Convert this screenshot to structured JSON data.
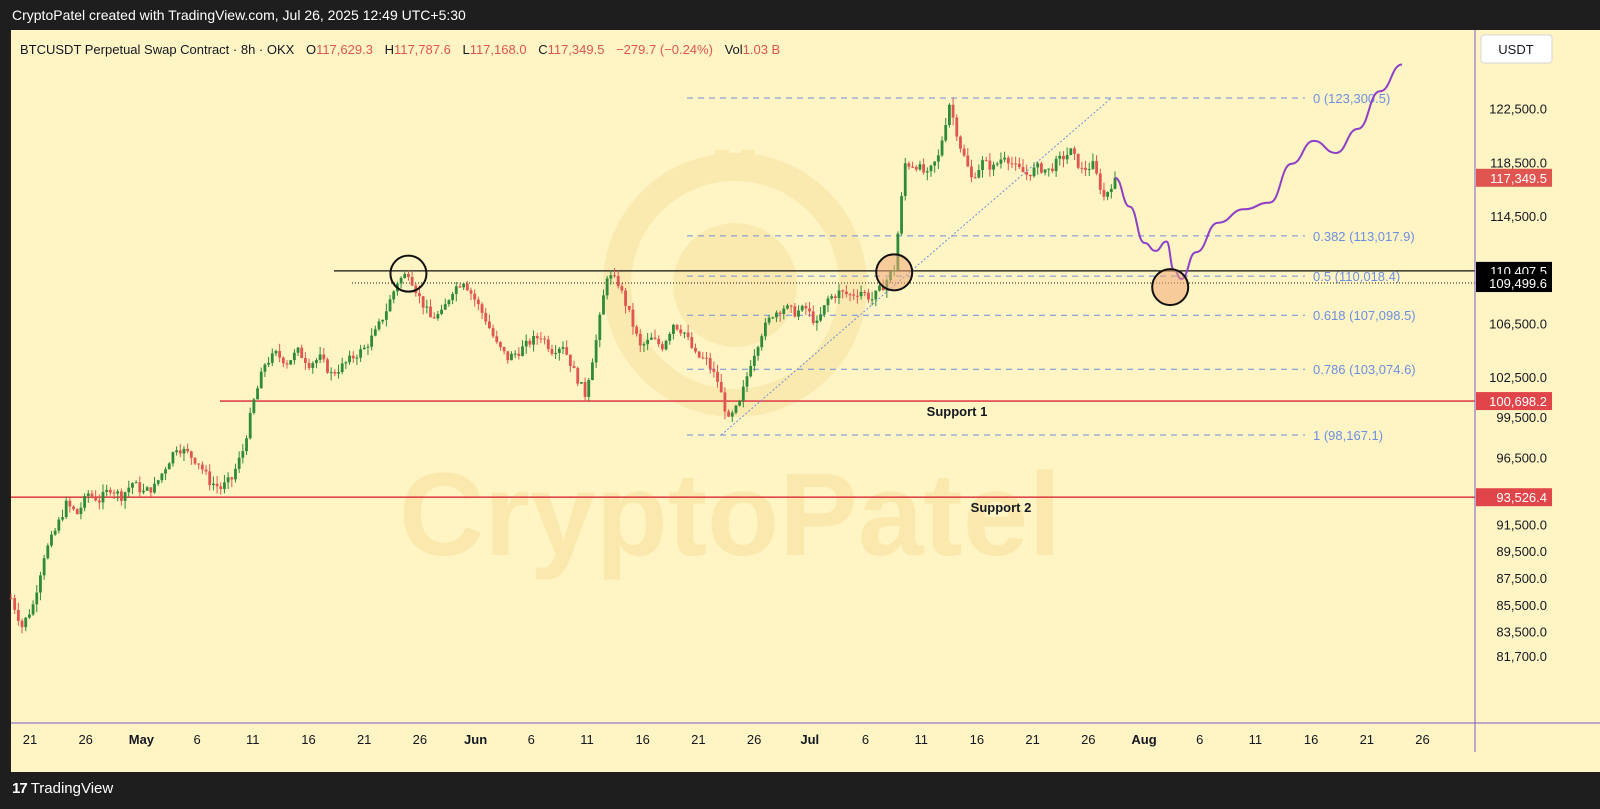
{
  "header": {
    "credit": "CryptoPatel created with TradingView.com, Jul 26, 2025 12:49 UTC+5:30"
  },
  "legend": {
    "symbol": "BTCUSDT Perpetual Swap Contract · 8h · OKX",
    "open_label": "O",
    "open": "117,629.3",
    "high_label": "H",
    "high": "117,787.6",
    "low_label": "L",
    "low": "117,168.0",
    "close_label": "C",
    "close": "117,349.5",
    "change": "−279.7 (−0.24%)",
    "vol_label": "Vol",
    "vol": "1.03 B"
  },
  "watermark": "CryptoPatel",
  "currency": "USDT",
  "footer": {
    "brand": "TradingView"
  },
  "colors": {
    "up": "#2e8b3a",
    "down": "#e0554f",
    "background": "#fff5c4",
    "fib": "#6c8fe0",
    "support": "#e0454a",
    "projection": "#8e3fc7"
  },
  "chart_data": {
    "type": "candlestick",
    "interval": "8h",
    "x_ticks": [
      "21",
      "26",
      "May",
      "6",
      "11",
      "16",
      "21",
      "26",
      "Jun",
      "6",
      "11",
      "16",
      "21",
      "26",
      "Jul",
      "6",
      "11",
      "16",
      "21",
      "26",
      "Aug",
      "6",
      "11",
      "16",
      "21",
      "26"
    ],
    "y_ticks": [
      "122,500.0",
      "118,500.0",
      "114,500.0",
      "106,500.0",
      "102,500.0",
      "99,500.0",
      "96,500.0",
      "91,500.0",
      "89,500.0",
      "87,500.0",
      "85,500.0",
      "83,500.0",
      "81,700.0"
    ],
    "y_range": [
      80400,
      126500
    ],
    "price_labels": [
      {
        "text": "117,349.5",
        "value": 117349.5,
        "color": "#e0554f"
      },
      {
        "text": "110,407.5",
        "value": 110407.5,
        "color": "#000000"
      },
      {
        "text": "109,499.6",
        "value": 109499.6,
        "color": "#000000"
      },
      {
        "text": "100,698.2",
        "value": 100698.2,
        "color": "#e0454a"
      },
      {
        "text": "93,526.4",
        "value": 93526.4,
        "color": "#e0454a"
      }
    ],
    "fib_levels": [
      {
        "label": "0 (123,300.5)",
        "value": 123300.5
      },
      {
        "label": "0.382 (113,017.9)",
        "value": 113017.9
      },
      {
        "label": "0.5 (110,018.4)",
        "value": 110018.4
      },
      {
        "label": "0.618 (107,098.5)",
        "value": 107098.5
      },
      {
        "label": "0.786 (103,074.6)",
        "value": 103074.6
      },
      {
        "label": "1 (98,167.1)",
        "value": 98167.1
      }
    ],
    "supports": [
      {
        "label": "Support 1",
        "value": 100698.2
      },
      {
        "label": "Support 2",
        "value": 93526.4
      }
    ],
    "resistance_line": 110407.5,
    "dotted_line": 109499.6,
    "price_path": [
      [
        0,
        86000
      ],
      [
        3,
        83900
      ],
      [
        6,
        85500
      ],
      [
        9,
        89200
      ],
      [
        12,
        91000
      ],
      [
        15,
        93000
      ],
      [
        18,
        92300
      ],
      [
        21,
        93800
      ],
      [
        24,
        93300
      ],
      [
        27,
        94200
      ],
      [
        30,
        93600
      ],
      [
        33,
        94600
      ],
      [
        36,
        93900
      ],
      [
        39,
        94300
      ],
      [
        42,
        95800
      ],
      [
        45,
        97300
      ],
      [
        48,
        96800
      ],
      [
        51,
        96100
      ],
      [
        54,
        94700
      ],
      [
        57,
        94200
      ],
      [
        60,
        94900
      ],
      [
        63,
        97000
      ],
      [
        66,
        100700
      ],
      [
        69,
        103500
      ],
      [
        72,
        104200
      ],
      [
        75,
        103600
      ],
      [
        78,
        104400
      ],
      [
        81,
        103500
      ],
      [
        84,
        103900
      ],
      [
        87,
        102700
      ],
      [
        90,
        103300
      ],
      [
        93,
        104000
      ],
      [
        96,
        104600
      ],
      [
        99,
        105800
      ],
      [
        102,
        107500
      ],
      [
        105,
        109600
      ],
      [
        108,
        110300
      ],
      [
        111,
        108400
      ],
      [
        114,
        106900
      ],
      [
        117,
        107200
      ],
      [
        120,
        109000
      ],
      [
        123,
        109700
      ],
      [
        126,
        108300
      ],
      [
        129,
        106800
      ],
      [
        132,
        104900
      ],
      [
        135,
        103900
      ],
      [
        138,
        104400
      ],
      [
        141,
        105100
      ],
      [
        144,
        105600
      ],
      [
        147,
        104500
      ],
      [
        150,
        104900
      ],
      [
        153,
        102900
      ],
      [
        156,
        101200
      ],
      [
        159,
        105200
      ],
      [
        162,
        110100
      ],
      [
        165,
        109500
      ],
      [
        168,
        107200
      ],
      [
        171,
        104700
      ],
      [
        174,
        105300
      ],
      [
        177,
        104800
      ],
      [
        180,
        106500
      ],
      [
        183,
        105800
      ],
      [
        186,
        104100
      ],
      [
        189,
        103700
      ],
      [
        192,
        102200
      ],
      [
        195,
        99200
      ],
      [
        198,
        100500
      ],
      [
        201,
        103600
      ],
      [
        204,
        105800
      ],
      [
        207,
        107200
      ],
      [
        210,
        107700
      ],
      [
        213,
        107300
      ],
      [
        216,
        107600
      ],
      [
        219,
        106400
      ],
      [
        222,
        108300
      ],
      [
        225,
        108800
      ],
      [
        228,
        108600
      ],
      [
        231,
        108900
      ],
      [
        234,
        108300
      ],
      [
        237,
        109300
      ],
      [
        240,
        110600
      ],
      [
        243,
        118400
      ],
      [
        246,
        118300
      ],
      [
        249,
        117500
      ],
      [
        252,
        118900
      ],
      [
        255,
        122900
      ],
      [
        258,
        119700
      ],
      [
        261,
        117300
      ],
      [
        264,
        118500
      ],
      [
        267,
        118100
      ],
      [
        270,
        119100
      ],
      [
        273,
        118100
      ],
      [
        276,
        117600
      ],
      [
        279,
        118100
      ],
      [
        282,
        117900
      ],
      [
        285,
        118700
      ],
      [
        288,
        119300
      ],
      [
        291,
        117900
      ],
      [
        294,
        118300
      ],
      [
        297,
        115900
      ],
      [
        300,
        117350
      ]
    ],
    "projection_path": [
      [
        300,
        117350
      ],
      [
        304,
        115200
      ],
      [
        308,
        112500
      ],
      [
        311,
        111900
      ],
      [
        314,
        112600
      ],
      [
        316,
        110500
      ],
      [
        318,
        109800
      ],
      [
        322,
        111800
      ],
      [
        328,
        114000
      ],
      [
        335,
        115000
      ],
      [
        342,
        115500
      ],
      [
        348,
        118400
      ],
      [
        354,
        120100
      ],
      [
        360,
        119200
      ],
      [
        366,
        121000
      ],
      [
        372,
        123800
      ],
      [
        378,
        125800
      ]
    ],
    "trendline": [
      [
        193,
        98167
      ],
      [
        299,
        123300
      ]
    ],
    "highlight_circles": [
      {
        "t": 108,
        "value": 110200
      },
      {
        "t": 240,
        "value": 110300
      },
      {
        "t": 315,
        "value": 109200
      }
    ]
  }
}
